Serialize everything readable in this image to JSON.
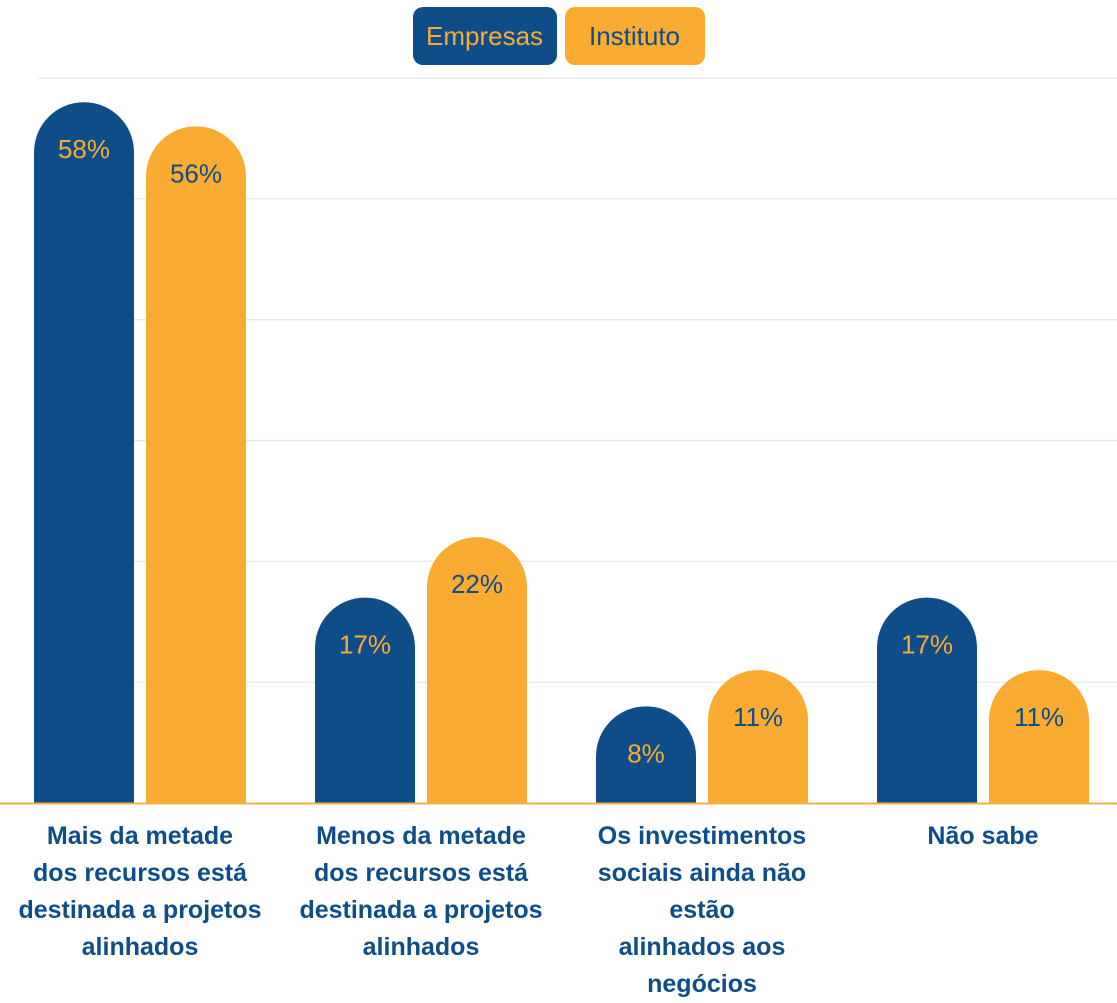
{
  "colors": {
    "empresas": "#0f4d89",
    "instituto": "#f9ac31",
    "grid": "#e6e6e6",
    "baseline": "#f3b04a",
    "label_text": "#0f4d89"
  },
  "legend": {
    "empresas": "Empresas",
    "instituto": "Instituto"
  },
  "chart_data": {
    "type": "bar",
    "categories": [
      "Mais da metade dos recursos está destinada a projetos alinhados",
      "Menos da metade dos recursos está destinada a projetos alinhados",
      "Os investimentos sociais ainda não estão alinhados aos negócios",
      "Não sabe"
    ],
    "category_lines": [
      [
        "Mais da metade",
        "dos recursos está",
        "destinada a projetos",
        "alinhados"
      ],
      [
        "Menos da metade",
        "dos recursos está",
        "destinada a projetos",
        "alinhados"
      ],
      [
        "Os investimentos",
        "sociais ainda não estão",
        "alinhados aos negócios"
      ],
      [
        "Não sabe"
      ]
    ],
    "series": [
      {
        "name": "Empresas",
        "values": [
          58,
          17,
          8,
          17
        ],
        "labels": [
          "58%",
          "17%",
          "8%",
          "17%"
        ]
      },
      {
        "name": "Instituto",
        "values": [
          56,
          22,
          11,
          11
        ],
        "labels": [
          "56%",
          "22%",
          "11%",
          "11%"
        ]
      }
    ],
    "ylim": [
      0,
      60
    ],
    "grid": true,
    "legend_position": "top-center",
    "title": "",
    "xlabel": "",
    "ylabel": ""
  }
}
